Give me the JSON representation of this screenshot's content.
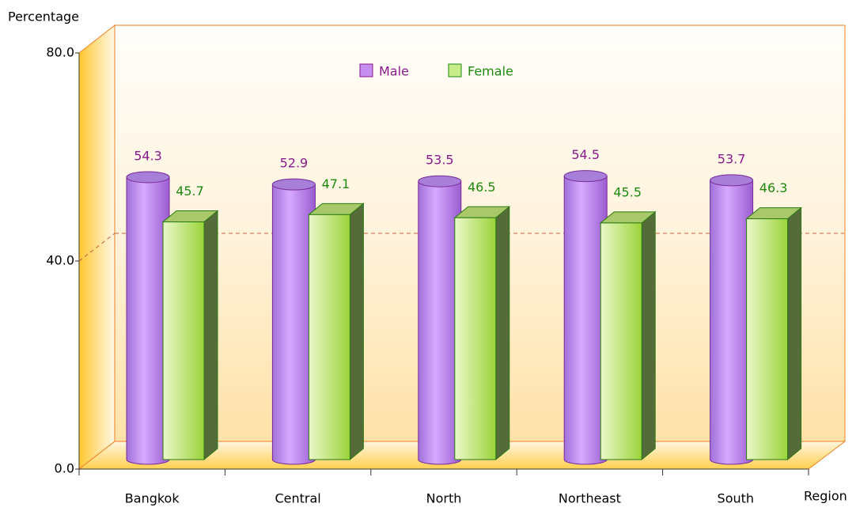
{
  "chart_data": {
    "type": "bar3d",
    "y_label": "Percentage",
    "x_label": "Region",
    "categories": [
      "Bangkok",
      "Central",
      "North",
      "Northeast",
      "South"
    ],
    "series": [
      {
        "name": "Male",
        "color": "#c58ff0",
        "values": [
          54.3,
          52.9,
          53.5,
          54.5,
          53.7
        ]
      },
      {
        "name": "Female",
        "color": "#c8ec8a",
        "values": [
          45.7,
          47.1,
          46.5,
          45.5,
          46.3
        ]
      }
    ],
    "ylim": [
      0,
      80
    ],
    "yticks": [
      {
        "value": 0,
        "label": "0.0"
      },
      {
        "value": 40,
        "label": "40.0"
      },
      {
        "value": 80,
        "label": "80.0"
      }
    ],
    "grid": true,
    "legend": "top"
  }
}
